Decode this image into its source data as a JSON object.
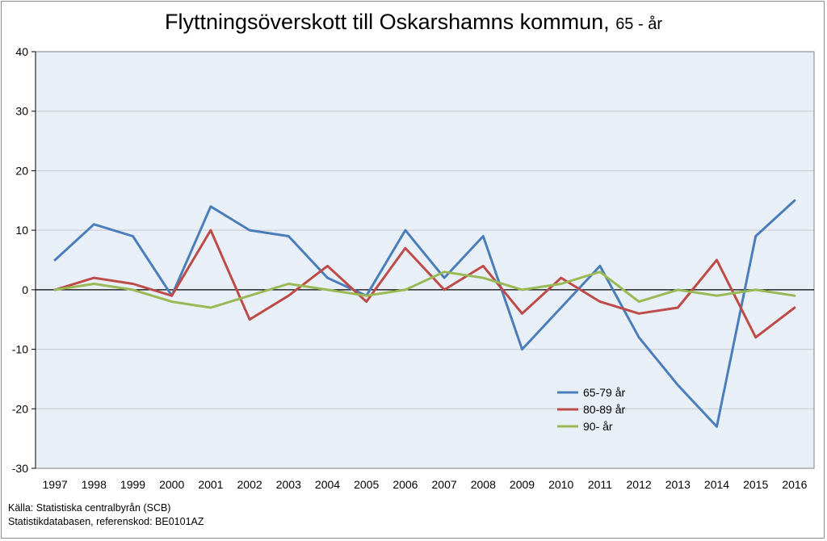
{
  "chart_data": {
    "type": "line",
    "title": "Flyttningsöverskott till Oskarshamns kommun,",
    "subtitle": "65 - år",
    "categories": [
      "1997",
      "1998",
      "1999",
      "2000",
      "2001",
      "2002",
      "2003",
      "2004",
      "2005",
      "2006",
      "2007",
      "2008",
      "2009",
      "2010",
      "2011",
      "2012",
      "2013",
      "2014",
      "2015",
      "2016"
    ],
    "series": [
      {
        "name": "65-79 år",
        "color": "#4a7ebb",
        "values": [
          5,
          11,
          9,
          -1,
          14,
          10,
          9,
          2,
          -1,
          10,
          2,
          9,
          -10,
          -3,
          4,
          -8,
          -16,
          -23,
          9,
          15
        ]
      },
      {
        "name": "80-89 år",
        "color": "#be4b48",
        "values": [
          0,
          2,
          1,
          -1,
          10,
          -5,
          -1,
          4,
          -2,
          7,
          0,
          4,
          -4,
          2,
          -2,
          -4,
          -3,
          5,
          -8,
          -3
        ]
      },
      {
        "name": "90- år",
        "color": "#98b954",
        "values": [
          0,
          1,
          0,
          -2,
          -3,
          -1,
          1,
          0,
          -1,
          0,
          3,
          2,
          0,
          1,
          3,
          -2,
          0,
          -1,
          0,
          -1
        ]
      }
    ],
    "ylim": [
      -30,
      40
    ],
    "yticks": [
      "40",
      "30",
      "20",
      "10",
      "0",
      "-10",
      "-20",
      "-30"
    ],
    "grid": true,
    "legend_position": "lower-right inside plot"
  },
  "source": {
    "line1": "Källa: Statistiska centralbyrån (SCB)",
    "line2": "Statistikdatabasen, referenskod: BE0101AZ"
  }
}
